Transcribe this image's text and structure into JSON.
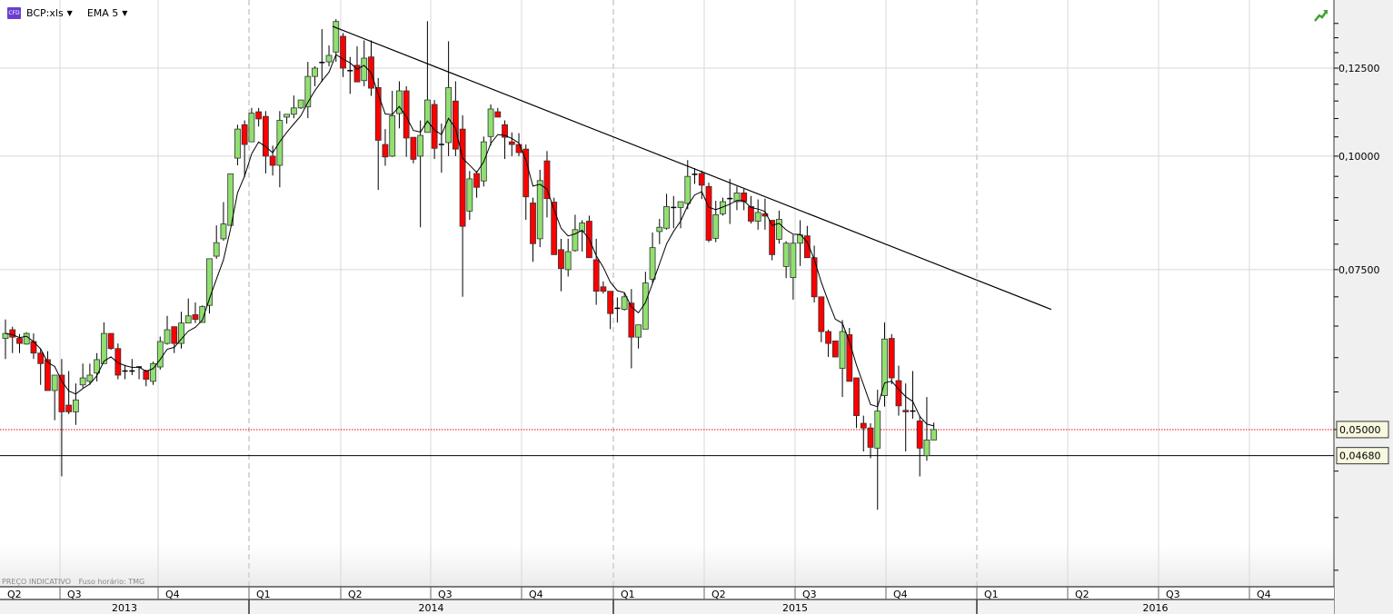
{
  "header": {
    "instrument_badge": "CFD",
    "instrument": "BCP:xls",
    "indicator": "EMA 5"
  },
  "footer_note": {
    "price_label": "PREÇO INDICATIVO",
    "timezone": "Fuso horário: TMG"
  },
  "colors": {
    "up": "#90e070",
    "down": "#ff0000",
    "ema": "#000000",
    "current_price_line": "#ff0000",
    "grid": "#d8d8d8"
  },
  "icons": {
    "instrument": "cfd-badge-icon",
    "trend": "trend-up-icon"
  },
  "chart_data": {
    "type": "candlestick",
    "y_scale": "log",
    "ylim": [
      0.034,
      0.142
    ],
    "y_ticks": [
      0.125,
      0.1,
      0.075
    ],
    "y_tick_labels": [
      "0,12500",
      "0,10000",
      "0,07500"
    ],
    "grid": true,
    "x_quarters": [
      {
        "label": "Q2",
        "year": "2013"
      },
      {
        "label": "Q3",
        "year": "2013"
      },
      {
        "label": "Q4",
        "year": "2013"
      },
      {
        "label": "Q1",
        "year": "2014"
      },
      {
        "label": "Q2",
        "year": "2014"
      },
      {
        "label": "Q3",
        "year": "2014"
      },
      {
        "label": "Q4",
        "year": "2014"
      },
      {
        "label": "Q1",
        "year": "2015"
      },
      {
        "label": "Q2",
        "year": "2015"
      },
      {
        "label": "Q3",
        "year": "2015"
      },
      {
        "label": "Q4",
        "year": "2015"
      },
      {
        "label": "Q1",
        "year": "2016"
      },
      {
        "label": "Q2",
        "year": "2016"
      },
      {
        "label": "Q3",
        "year": "2016"
      },
      {
        "label": "Q4",
        "year": "2016"
      }
    ],
    "years": [
      "2013",
      "2014",
      "2015",
      "2016"
    ],
    "period": "weekly",
    "ohlc": [
      [
        0.063,
        0.0661,
        0.0598,
        0.0638
      ],
      [
        0.0644,
        0.0649,
        0.0607,
        0.0632
      ],
      [
        0.063,
        0.0637,
        0.0607,
        0.0622
      ],
      [
        0.0621,
        0.064,
        0.062,
        0.0638
      ],
      [
        0.0625,
        0.0638,
        0.0598,
        0.0607
      ],
      [
        0.0607,
        0.0614,
        0.056,
        0.0591
      ],
      [
        0.0597,
        0.061,
        0.0552,
        0.0552
      ],
      [
        0.0552,
        0.0574,
        0.0512,
        0.0574
      ],
      [
        0.0574,
        0.0598,
        0.0444,
        0.0523
      ],
      [
        0.0532,
        0.058,
        0.052,
        0.0523
      ],
      [
        0.0523,
        0.0562,
        0.0506,
        0.0539
      ],
      [
        0.056,
        0.0591,
        0.0556,
        0.057
      ],
      [
        0.0565,
        0.0591,
        0.056,
        0.0574
      ],
      [
        0.0577,
        0.0607,
        0.0565,
        0.0597
      ],
      [
        0.0591,
        0.0656,
        0.0591,
        0.0638
      ],
      [
        0.0638,
        0.0638,
        0.0612,
        0.0614
      ],
      [
        0.0614,
        0.0622,
        0.0568,
        0.0574
      ],
      [
        0.058,
        0.0589,
        0.0568,
        0.058
      ],
      [
        0.0579,
        0.0598,
        0.0574,
        0.058
      ],
      [
        0.0586,
        0.0586,
        0.0568,
        0.0586
      ],
      [
        0.058,
        0.0582,
        0.0558,
        0.0568
      ],
      [
        0.0565,
        0.0594,
        0.056,
        0.0591
      ],
      [
        0.0586,
        0.0633,
        0.0582,
        0.0625
      ],
      [
        0.0622,
        0.0667,
        0.062,
        0.0644
      ],
      [
        0.0649,
        0.0649,
        0.0607,
        0.0622
      ],
      [
        0.0622,
        0.0674,
        0.0614,
        0.0655
      ],
      [
        0.0655,
        0.0697,
        0.0655,
        0.0667
      ],
      [
        0.0669,
        0.069,
        0.0655,
        0.0661
      ],
      [
        0.0656,
        0.0685,
        0.0656,
        0.0683
      ],
      [
        0.0685,
        0.0771,
        0.0671,
        0.0771
      ],
      [
        0.0776,
        0.0839,
        0.0771,
        0.0803
      ],
      [
        0.0811,
        0.089,
        0.0807,
        0.0842
      ],
      [
        0.0839,
        0.0956,
        0.0839,
        0.0956
      ],
      [
        0.0995,
        0.1083,
        0.0977,
        0.1071
      ],
      [
        0.1083,
        0.1095,
        0.0948,
        0.103
      ],
      [
        0.1037,
        0.113,
        0.1037,
        0.1115
      ],
      [
        0.1119,
        0.113,
        0.1078,
        0.1099
      ],
      [
        0.1106,
        0.1121,
        0.0957,
        0.1
      ],
      [
        0.1,
        0.1027,
        0.0952,
        0.0977
      ],
      [
        0.0977,
        0.1121,
        0.0924,
        0.1095
      ],
      [
        0.1104,
        0.1112,
        0.1086,
        0.1112
      ],
      [
        0.1112,
        0.1166,
        0.1101,
        0.113
      ],
      [
        0.113,
        0.1153,
        0.1127,
        0.1153
      ],
      [
        0.1133,
        0.127,
        0.1101,
        0.1224
      ],
      [
        0.1224,
        0.1256,
        0.1194,
        0.125
      ],
      [
        0.1268,
        0.138,
        0.1207,
        0.1268
      ],
      [
        0.127,
        0.1324,
        0.1256,
        0.1291
      ],
      [
        0.1302,
        0.1415,
        0.127,
        0.1407
      ],
      [
        0.1355,
        0.1366,
        0.1222,
        0.125
      ],
      [
        0.1242,
        0.1286,
        0.1171,
        0.1242
      ],
      [
        0.1259,
        0.1321,
        0.1207,
        0.1207
      ],
      [
        0.1211,
        0.1341,
        0.1194,
        0.1282
      ],
      [
        0.1286,
        0.1341,
        0.1165,
        0.1188
      ],
      [
        0.119,
        0.1219,
        0.0918,
        0.1041
      ],
      [
        0.103,
        0.1071,
        0.0976,
        0.0998
      ],
      [
        0.1,
        0.118,
        0.0998,
        0.1108
      ],
      [
        0.1114,
        0.1209,
        0.1073,
        0.118
      ],
      [
        0.118,
        0.1194,
        0.0998,
        0.1047
      ],
      [
        0.1049,
        0.1049,
        0.0982,
        0.0992
      ],
      [
        0.1,
        0.1095,
        0.0835,
        0.1054
      ],
      [
        0.1062,
        0.1408,
        0.1062,
        0.1153
      ],
      [
        0.114,
        0.1153,
        0.0993,
        0.102
      ],
      [
        0.103,
        0.1086,
        0.0959,
        0.103
      ],
      [
        0.1035,
        0.1338,
        0.1,
        0.119
      ],
      [
        0.115,
        0.1209,
        0.1,
        0.1018
      ],
      [
        0.1071,
        0.1109,
        0.07,
        0.0837
      ],
      [
        0.087,
        0.0963,
        0.0851,
        0.0944
      ],
      [
        0.0957,
        0.0963,
        0.09,
        0.0924
      ],
      [
        0.0939,
        0.1051,
        0.0926,
        0.1037
      ],
      [
        0.1051,
        0.114,
        0.1027,
        0.1127
      ],
      [
        0.1119,
        0.113,
        0.1104,
        0.1104
      ],
      [
        0.1083,
        0.1095,
        0.0993,
        0.1049
      ],
      [
        0.1037,
        0.1062,
        0.1,
        0.103
      ],
      [
        0.103,
        0.106,
        0.1,
        0.1009
      ],
      [
        0.1018,
        0.103,
        0.0851,
        0.0902
      ],
      [
        0.0888,
        0.09,
        0.0765,
        0.0801
      ],
      [
        0.0811,
        0.0966,
        0.0794,
        0.094
      ],
      [
        0.0988,
        0.1013,
        0.0856,
        0.0898
      ],
      [
        0.089,
        0.09,
        0.0779,
        0.0779
      ],
      [
        0.0789,
        0.0811,
        0.071,
        0.0752
      ],
      [
        0.075,
        0.0811,
        0.0737,
        0.0785
      ],
      [
        0.0787,
        0.0862,
        0.0785,
        0.083
      ],
      [
        0.0826,
        0.085,
        0.0785,
        0.0844
      ],
      [
        0.0848,
        0.086,
        0.0773,
        0.0773
      ],
      [
        0.0769,
        0.0811,
        0.0686,
        0.071
      ],
      [
        0.0718,
        0.0728,
        0.0706,
        0.071
      ],
      [
        0.071,
        0.071,
        0.0645,
        0.0671
      ],
      [
        0.068,
        0.0699,
        0.0656,
        0.068
      ],
      [
        0.0678,
        0.0708,
        0.0676,
        0.07
      ],
      [
        0.0689,
        0.0714,
        0.0584,
        0.0632
      ],
      [
        0.0632,
        0.0652,
        0.0614,
        0.0652
      ],
      [
        0.0645,
        0.0746,
        0.0645,
        0.0725
      ],
      [
        0.0732,
        0.0824,
        0.0725,
        0.0793
      ],
      [
        0.0826,
        0.0853,
        0.08,
        0.0835
      ],
      [
        0.0833,
        0.0909,
        0.083,
        0.088
      ],
      [
        0.0878,
        0.0904,
        0.0833,
        0.0878
      ],
      [
        0.0878,
        0.0891,
        0.0833,
        0.0891
      ],
      [
        0.0887,
        0.099,
        0.0874,
        0.095
      ],
      [
        0.0955,
        0.097,
        0.0932,
        0.0955
      ],
      [
        0.0957,
        0.0964,
        0.0897,
        0.0929
      ],
      [
        0.0926,
        0.0935,
        0.0804,
        0.0808
      ],
      [
        0.0812,
        0.0893,
        0.0804,
        0.0862
      ],
      [
        0.0864,
        0.09,
        0.086,
        0.0891
      ],
      [
        0.0898,
        0.0944,
        0.0842,
        0.0898
      ],
      [
        0.0891,
        0.0926,
        0.0872,
        0.0911
      ],
      [
        0.0911,
        0.092,
        0.0872,
        0.0891
      ],
      [
        0.088,
        0.0904,
        0.0843,
        0.0848
      ],
      [
        0.0848,
        0.0896,
        0.083,
        0.0867
      ],
      [
        0.0864,
        0.0898,
        0.083,
        0.0859
      ],
      [
        0.085,
        0.085,
        0.0768,
        0.0779
      ],
      [
        0.081,
        0.0871,
        0.0801,
        0.0852
      ],
      [
        0.0756,
        0.0806,
        0.0734,
        0.0802
      ],
      [
        0.0735,
        0.0819,
        0.0695,
        0.0802
      ],
      [
        0.0802,
        0.085,
        0.0757,
        0.0819
      ],
      [
        0.0817,
        0.0838,
        0.0773,
        0.0773
      ],
      [
        0.0773,
        0.0797,
        0.069,
        0.07
      ],
      [
        0.07,
        0.07,
        0.0624,
        0.0641
      ],
      [
        0.0641,
        0.0644,
        0.0601,
        0.0622
      ],
      [
        0.0626,
        0.0626,
        0.0601,
        0.0601
      ],
      [
        0.0584,
        0.066,
        0.0543,
        0.0641
      ],
      [
        0.0636,
        0.0647,
        0.0565,
        0.0565
      ],
      [
        0.057,
        0.057,
        0.0502,
        0.0518
      ],
      [
        0.0508,
        0.0518,
        0.0473,
        0.0502
      ],
      [
        0.0502,
        0.0508,
        0.0465,
        0.0478
      ],
      [
        0.0477,
        0.0553,
        0.0408,
        0.0524
      ],
      [
        0.0545,
        0.0656,
        0.053,
        0.0629
      ],
      [
        0.063,
        0.0637,
        0.0561,
        0.057
      ],
      [
        0.0566,
        0.0588,
        0.0518,
        0.0531
      ],
      [
        0.0525,
        0.0562,
        0.0473,
        0.0523
      ],
      [
        0.0524,
        0.058,
        0.0514,
        0.0524
      ],
      [
        0.0511,
        0.0518,
        0.0444,
        0.0477
      ],
      [
        0.0468,
        0.0543,
        0.0462,
        0.0487
      ],
      [
        0.0487,
        0.0509,
        0.0487,
        0.05
      ]
    ],
    "ema_period": 5,
    "trendline": {
      "start": {
        "bar": 46.5,
        "price": 0.139
      },
      "end": {
        "bar": 148.7,
        "price": 0.0678
      }
    },
    "current_price": {
      "value": 0.05,
      "label": "0,05000"
    },
    "support_line": {
      "value": 0.0468,
      "label": "0,04680"
    }
  }
}
